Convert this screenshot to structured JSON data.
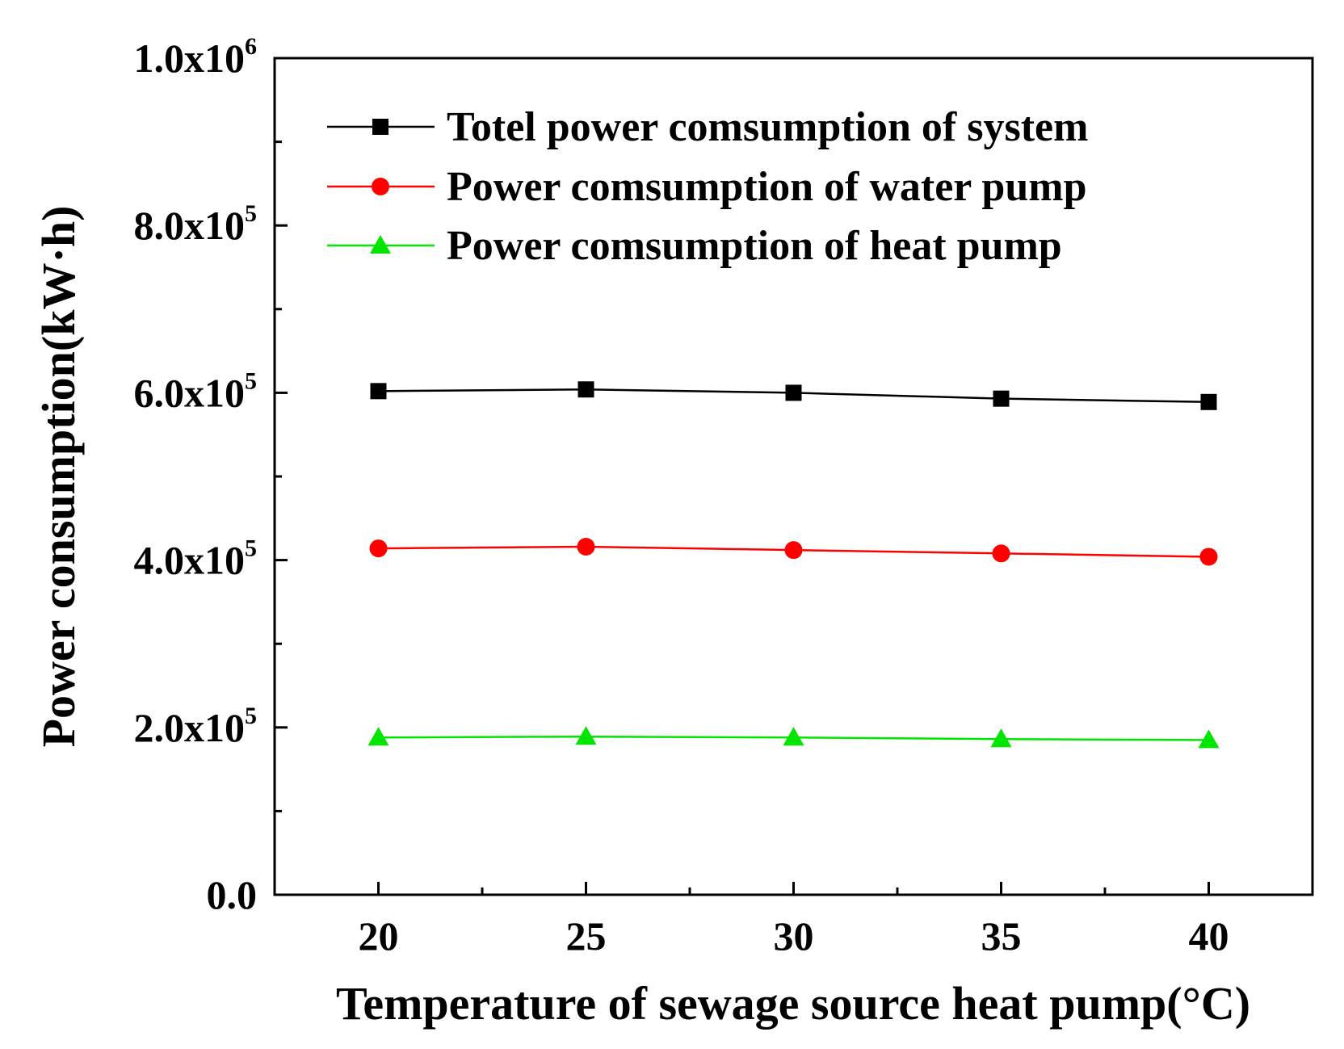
{
  "chart_data": {
    "type": "line",
    "title": "",
    "xlabel": "Temperature of sewage source heat pump(°C)",
    "ylabel": "Power consumption(kW·h)",
    "x": [
      20,
      25,
      30,
      35,
      40
    ],
    "xlim": [
      17.5,
      42.5
    ],
    "ylim": [
      0,
      1000000
    ],
    "x_ticks": [
      "20",
      "25",
      "30",
      "35",
      "40"
    ],
    "y_ticks": [
      {
        "value": 0,
        "mantissa": "0.0",
        "base": "",
        "exponent": ""
      },
      {
        "value": 200000,
        "mantissa": "2.0x10",
        "base": "",
        "exponent": "5"
      },
      {
        "value": 400000,
        "mantissa": "4.0x10",
        "base": "",
        "exponent": "5"
      },
      {
        "value": 600000,
        "mantissa": "6.0x10",
        "base": "",
        "exponent": "5"
      },
      {
        "value": 800000,
        "mantissa": "8.0x10",
        "base": "",
        "exponent": "5"
      },
      {
        "value": 1000000,
        "mantissa": "1.0x10",
        "base": "",
        "exponent": "6"
      }
    ],
    "grid": false,
    "legend_position": "top-left",
    "series": [
      {
        "name": "Totel power comsumption of system",
        "color": "#000000",
        "marker": "square",
        "values": [
          602000,
          604000,
          600000,
          593000,
          589000
        ]
      },
      {
        "name": "Power comsumption of water pump",
        "color": "#ff0000",
        "marker": "circle",
        "values": [
          414000,
          416000,
          412000,
          408000,
          404000
        ]
      },
      {
        "name": "Power comsumption of heat pump",
        "color": "#00e600",
        "marker": "triangle",
        "values": [
          188000,
          189000,
          188000,
          186000,
          185000
        ]
      }
    ]
  }
}
